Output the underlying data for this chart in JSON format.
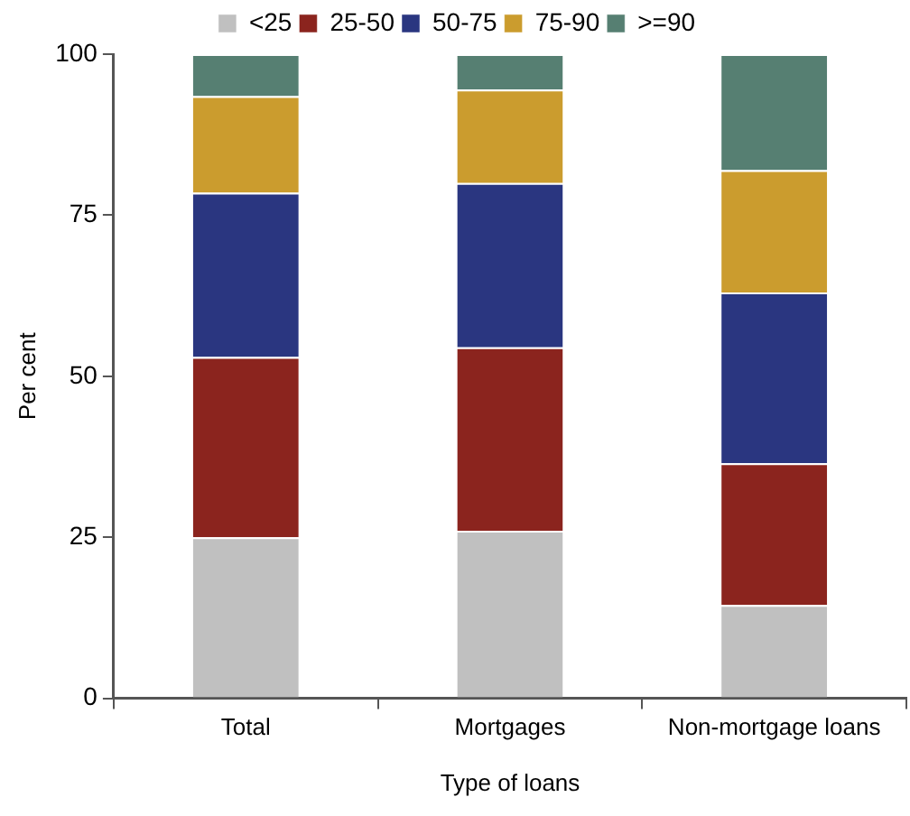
{
  "chart_data": {
    "type": "bar",
    "stacked": true,
    "xlabel": "Type of loans",
    "ylabel": "Per cent",
    "categories": [
      "Total",
      "Mortgages",
      "Non-mortgage loans"
    ],
    "series": [
      {
        "name": "<25",
        "color": "#c0c0c0",
        "values": [
          25,
          26,
          14.5
        ]
      },
      {
        "name": "25-50",
        "color": "#8b241e",
        "values": [
          28,
          28.5,
          22
        ]
      },
      {
        "name": "50-75",
        "color": "#2a3680",
        "values": [
          25.5,
          25.5,
          26.5
        ]
      },
      {
        "name": "75-90",
        "color": "#cb9c2e",
        "values": [
          15,
          14.5,
          19
        ]
      },
      {
        "name": ">=90",
        "color": "#567f72",
        "values": [
          6.5,
          5.5,
          18
        ]
      }
    ],
    "ylim": [
      0,
      100
    ],
    "yticks": [
      0,
      25,
      50,
      75,
      100
    ],
    "grid": false,
    "legend": "top"
  }
}
